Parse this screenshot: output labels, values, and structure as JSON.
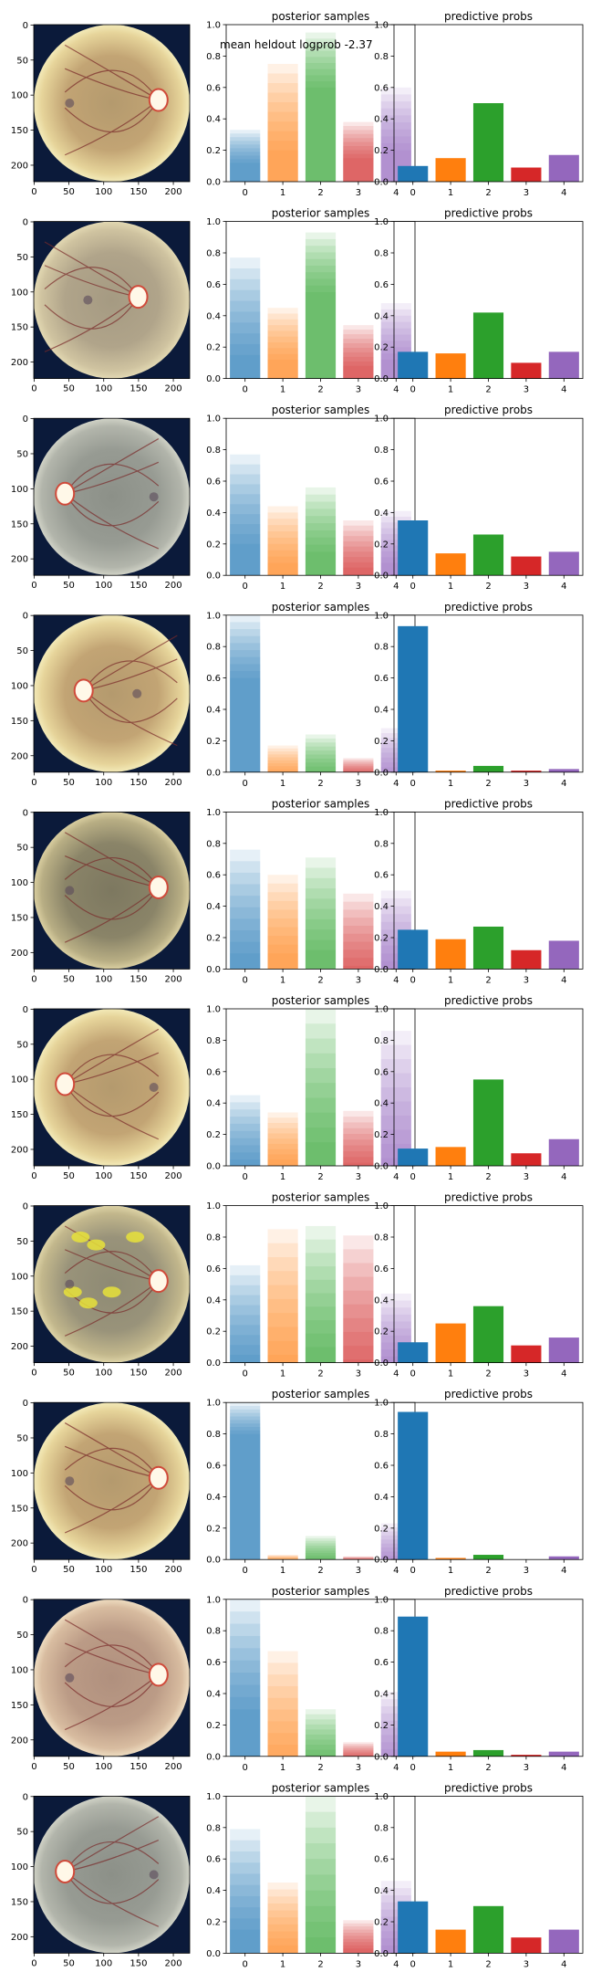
{
  "figure": {
    "annotation": "mean heldout logprob -2.37",
    "colors": {
      "class_0": "#1f77b4",
      "class_1": "#ff7f0e",
      "class_2": "#2ca02c",
      "class_3": "#d62728",
      "class_4": "#9467bd",
      "fundus_bg": "#0b1a3a",
      "fundus_rim": "#e8d8a0"
    },
    "image_axis_ticks": {
      "x": [
        "0",
        "50",
        "100",
        "150",
        "200"
      ],
      "y": [
        "0",
        "50",
        "100",
        "150",
        "200"
      ]
    },
    "bar_axis_ticks": {
      "y": [
        "0.0",
        "0.2",
        "0.4",
        "0.6",
        "0.8",
        "1.0"
      ]
    }
  },
  "chart_data": [
    {
      "row": 1,
      "image": {
        "type": "fundus-photo",
        "optic_disc_side": "right",
        "style": "yellow"
      },
      "posterior": {
        "type": "bar",
        "title": "posterior samples",
        "categories": [
          "0",
          "1",
          "2",
          "3",
          "4"
        ],
        "ylim": [
          0,
          1
        ],
        "sample_min": [
          0.12,
          0.2,
          0.6,
          0.15,
          0.2
        ],
        "sample_max": [
          0.33,
          0.75,
          0.95,
          0.38,
          0.6
        ]
      },
      "predictive": {
        "type": "bar",
        "title": "predictive probs",
        "categories": [
          "0",
          "1",
          "2",
          "3",
          "4"
        ],
        "ylim": [
          0,
          1
        ],
        "values": [
          0.1,
          0.15,
          0.5,
          0.09,
          0.17
        ]
      }
    },
    {
      "row": 2,
      "image": {
        "type": "fundus-photo",
        "optic_disc_side": "center-right",
        "style": "plain"
      },
      "posterior": {
        "type": "bar",
        "title": "posterior samples",
        "categories": [
          "0",
          "1",
          "2",
          "3",
          "4"
        ],
        "ylim": [
          0,
          1
        ],
        "sample_min": [
          0.15,
          0.12,
          0.55,
          0.08,
          0.12
        ],
        "sample_max": [
          0.77,
          0.45,
          0.93,
          0.34,
          0.48
        ]
      },
      "predictive": {
        "type": "bar",
        "title": "predictive probs",
        "categories": [
          "0",
          "1",
          "2",
          "3",
          "4"
        ],
        "ylim": [
          0,
          1
        ],
        "values": [
          0.17,
          0.16,
          0.42,
          0.1,
          0.17
        ]
      }
    },
    {
      "row": 3,
      "image": {
        "type": "fundus-photo",
        "optic_disc_side": "left",
        "style": "gray"
      },
      "posterior": {
        "type": "bar",
        "title": "posterior samples",
        "categories": [
          "0",
          "1",
          "2",
          "3",
          "4"
        ],
        "ylim": [
          0,
          1
        ],
        "sample_min": [
          0.2,
          0.08,
          0.15,
          0.05,
          0.08
        ],
        "sample_max": [
          0.77,
          0.44,
          0.56,
          0.35,
          0.41
        ]
      },
      "predictive": {
        "type": "bar",
        "title": "predictive probs",
        "categories": [
          "0",
          "1",
          "2",
          "3",
          "4"
        ],
        "ylim": [
          0,
          1
        ],
        "values": [
          0.35,
          0.14,
          0.26,
          0.12,
          0.15
        ]
      }
    },
    {
      "row": 4,
      "image": {
        "type": "fundus-photo",
        "optic_disc_side": "center-left",
        "style": "yellow"
      },
      "posterior": {
        "type": "bar",
        "title": "posterior samples",
        "categories": [
          "0",
          "1",
          "2",
          "3",
          "4"
        ],
        "ylim": [
          0,
          1
        ],
        "sample_min": [
          0.6,
          0.0,
          0.01,
          0.0,
          0.0
        ],
        "sample_max": [
          1.0,
          0.17,
          0.24,
          0.09,
          0.28
        ]
      },
      "predictive": {
        "type": "bar",
        "title": "predictive probs",
        "categories": [
          "0",
          "1",
          "2",
          "3",
          "4"
        ],
        "ylim": [
          0,
          1
        ],
        "values": [
          0.93,
          0.01,
          0.04,
          0.01,
          0.02
        ]
      }
    },
    {
      "row": 5,
      "image": {
        "type": "fundus-photo",
        "optic_disc_side": "right",
        "style": "dark"
      },
      "posterior": {
        "type": "bar",
        "title": "posterior samples",
        "categories": [
          "0",
          "1",
          "2",
          "3",
          "4"
        ],
        "ylim": [
          0,
          1
        ],
        "sample_min": [
          0.1,
          0.1,
          0.12,
          0.02,
          0.05
        ],
        "sample_max": [
          0.76,
          0.6,
          0.71,
          0.48,
          0.5
        ]
      },
      "predictive": {
        "type": "bar",
        "title": "predictive probs",
        "categories": [
          "0",
          "1",
          "2",
          "3",
          "4"
        ],
        "ylim": [
          0,
          1
        ],
        "values": [
          0.25,
          0.19,
          0.27,
          0.12,
          0.18
        ]
      }
    },
    {
      "row": 6,
      "image": {
        "type": "fundus-photo",
        "optic_disc_side": "left",
        "style": "yellow"
      },
      "posterior": {
        "type": "bar",
        "title": "posterior samples",
        "categories": [
          "0",
          "1",
          "2",
          "3",
          "4"
        ],
        "ylim": [
          0,
          1
        ],
        "sample_min": [
          0.04,
          0.04,
          0.15,
          0.02,
          0.05
        ],
        "sample_max": [
          0.45,
          0.34,
          1.0,
          0.35,
          0.86
        ]
      },
      "predictive": {
        "type": "bar",
        "title": "predictive probs",
        "categories": [
          "0",
          "1",
          "2",
          "3",
          "4"
        ],
        "ylim": [
          0,
          1
        ],
        "values": [
          0.11,
          0.12,
          0.55,
          0.08,
          0.17
        ]
      }
    },
    {
      "row": 7,
      "image": {
        "type": "fundus-photo",
        "optic_disc_side": "right",
        "style": "exudates"
      },
      "posterior": {
        "type": "bar",
        "title": "posterior samples",
        "categories": [
          "0",
          "1",
          "2",
          "3",
          "4"
        ],
        "ylim": [
          0,
          1
        ],
        "sample_min": [
          0.05,
          0.05,
          0.1,
          0.02,
          0.04
        ],
        "sample_max": [
          0.62,
          0.85,
          0.87,
          0.81,
          0.44
        ]
      },
      "predictive": {
        "type": "bar",
        "title": "predictive probs",
        "categories": [
          "0",
          "1",
          "2",
          "3",
          "4"
        ],
        "ylim": [
          0,
          1
        ],
        "values": [
          0.13,
          0.25,
          0.36,
          0.11,
          0.16
        ]
      }
    },
    {
      "row": 8,
      "image": {
        "type": "fundus-photo",
        "optic_disc_side": "right",
        "style": "yellow"
      },
      "posterior": {
        "type": "bar",
        "title": "posterior samples",
        "categories": [
          "0",
          "1",
          "2",
          "3",
          "4"
        ],
        "ylim": [
          0,
          1
        ],
        "sample_min": [
          0.8,
          0.0,
          0.01,
          0.0,
          0.0
        ],
        "sample_max": [
          1.0,
          0.03,
          0.15,
          0.02,
          0.23
        ]
      },
      "predictive": {
        "type": "bar",
        "title": "predictive probs",
        "categories": [
          "0",
          "1",
          "2",
          "3",
          "4"
        ],
        "ylim": [
          0,
          1
        ],
        "values": [
          0.94,
          0.01,
          0.03,
          0.0,
          0.02
        ]
      }
    },
    {
      "row": 9,
      "image": {
        "type": "fundus-photo",
        "optic_disc_side": "right",
        "style": "pink"
      },
      "posterior": {
        "type": "bar",
        "title": "posterior samples",
        "categories": [
          "0",
          "1",
          "2",
          "3",
          "4"
        ],
        "ylim": [
          0,
          1
        ],
        "sample_min": [
          0.3,
          0.0,
          0.01,
          0.0,
          0.0
        ],
        "sample_max": [
          1.0,
          0.67,
          0.3,
          0.09,
          0.41
        ]
      },
      "predictive": {
        "type": "bar",
        "title": "predictive probs",
        "categories": [
          "0",
          "1",
          "2",
          "3",
          "4"
        ],
        "ylim": [
          0,
          1
        ],
        "values": [
          0.89,
          0.03,
          0.04,
          0.01,
          0.03
        ]
      }
    },
    {
      "row": 10,
      "image": {
        "type": "fundus-photo",
        "optic_disc_side": "left",
        "style": "gray"
      },
      "posterior": {
        "type": "bar",
        "title": "posterior samples",
        "categories": [
          "0",
          "1",
          "2",
          "3",
          "4"
        ],
        "ylim": [
          0,
          1
        ],
        "sample_min": [
          0.15,
          0.05,
          0.1,
          0.03,
          0.05
        ],
        "sample_max": [
          0.79,
          0.45,
          1.0,
          0.21,
          0.46
        ]
      },
      "predictive": {
        "type": "bar",
        "title": "predictive probs",
        "categories": [
          "0",
          "1",
          "2",
          "3",
          "4"
        ],
        "ylim": [
          0,
          1
        ],
        "values": [
          0.33,
          0.15,
          0.3,
          0.1,
          0.15
        ]
      }
    }
  ]
}
